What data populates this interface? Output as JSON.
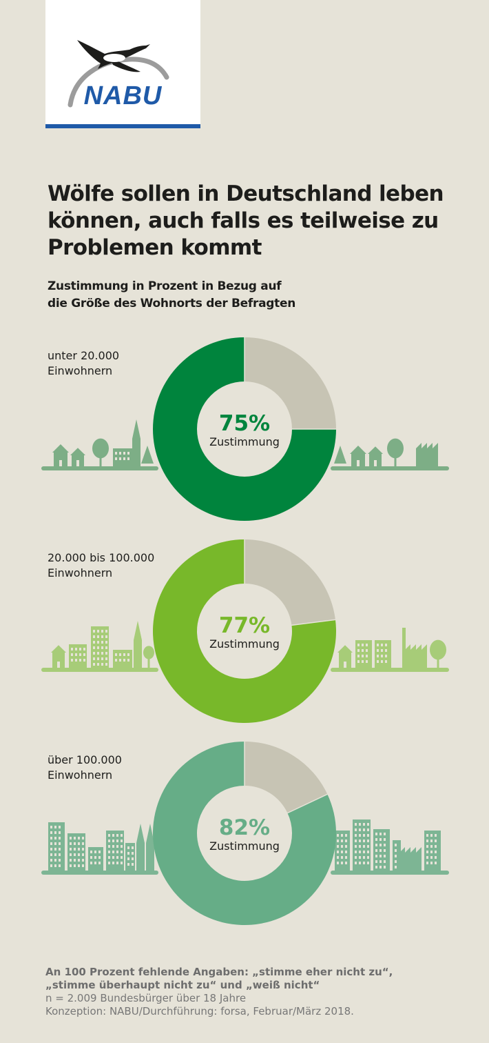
{
  "logo": {
    "text": "NABU"
  },
  "title": "Wölfe sollen in Deutschland leben können, auch falls es teilweise zu Problemen kommt",
  "subtitle": {
    "line1": "Zustimmung in Prozent in Bezug auf",
    "line2": "die Größe des Wohnorts der Befragten"
  },
  "chart_data": [
    {
      "type": "pie",
      "group_label": [
        "unter 20.000",
        "Einwohnern"
      ],
      "categories": [
        "Zustimmung",
        "Rest"
      ],
      "values": [
        75,
        25
      ],
      "center_value": "75%",
      "center_label": "Zustimmung",
      "colors": {
        "value": "#00843d",
        "rest": "#c7c4b4"
      }
    },
    {
      "type": "pie",
      "group_label": [
        "20.000 bis 100.000",
        "Einwohnern"
      ],
      "categories": [
        "Zustimmung",
        "Rest"
      ],
      "values": [
        77,
        23
      ],
      "center_value": "77%",
      "center_label": "Zustimmung",
      "colors": {
        "value": "#78b82a",
        "rest": "#c7c4b4"
      }
    },
    {
      "type": "pie",
      "group_label": [
        "über 100.000",
        "Einwohnern"
      ],
      "categories": [
        "Zustimmung",
        "Rest"
      ],
      "values": [
        82,
        18
      ],
      "center_value": "82%",
      "center_label": "Zustimmung",
      "colors": {
        "value": "#66ad87",
        "rest": "#c7c4b4"
      }
    }
  ],
  "footer": {
    "note_line1": "An 100 Prozent fehlende Angaben: „stimme eher nicht zu“,",
    "note_line2": "„stimme überhaupt nicht zu“ und „weiß nicht“",
    "sample": "n = 2.009 Bundesbürger über 18 Jahre",
    "credits": "Konzeption: NABU/Durchführung: forsa, Februar/März 2018."
  },
  "colors": {
    "background": "#e6e3d8",
    "nabu_blue": "#1f5aa8",
    "skyline": [
      "#7dae86",
      "#a7cc78",
      "#7db594"
    ]
  }
}
